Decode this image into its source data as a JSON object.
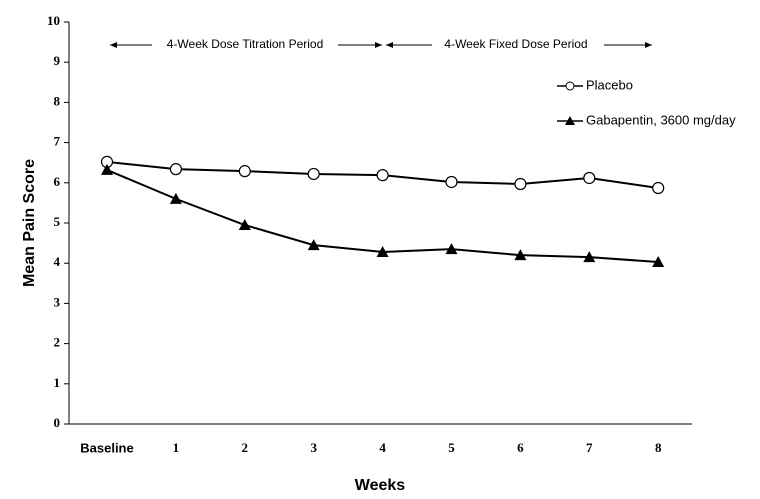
{
  "chart_data": {
    "type": "line",
    "x_label": "Weeks",
    "y_label": "Mean Pain Score",
    "annotations": [
      "4-Week Dose Titration Period",
      "4-Week Fixed Dose Period"
    ],
    "categories": [
      "Baseline",
      "1",
      "2",
      "3",
      "4",
      "5",
      "6",
      "7",
      "8"
    ],
    "series": [
      {
        "name": "Placebo",
        "color": "#000000",
        "marker": "circle",
        "values": [
          6.52,
          6.34,
          6.29,
          6.22,
          6.19,
          6.02,
          5.97,
          6.12,
          5.87
        ]
      },
      {
        "name": "Gabapentin, 3600 mg/day",
        "color": "#000000",
        "marker": "triangle",
        "values": [
          6.32,
          5.6,
          4.95,
          4.45,
          4.28,
          4.35,
          4.2,
          4.15,
          4.03
        ]
      }
    ],
    "ylim": [
      0,
      10
    ],
    "yticks": [
      0,
      1,
      2,
      3,
      4,
      5,
      6,
      7,
      8,
      9,
      10
    ],
    "grid": false
  }
}
